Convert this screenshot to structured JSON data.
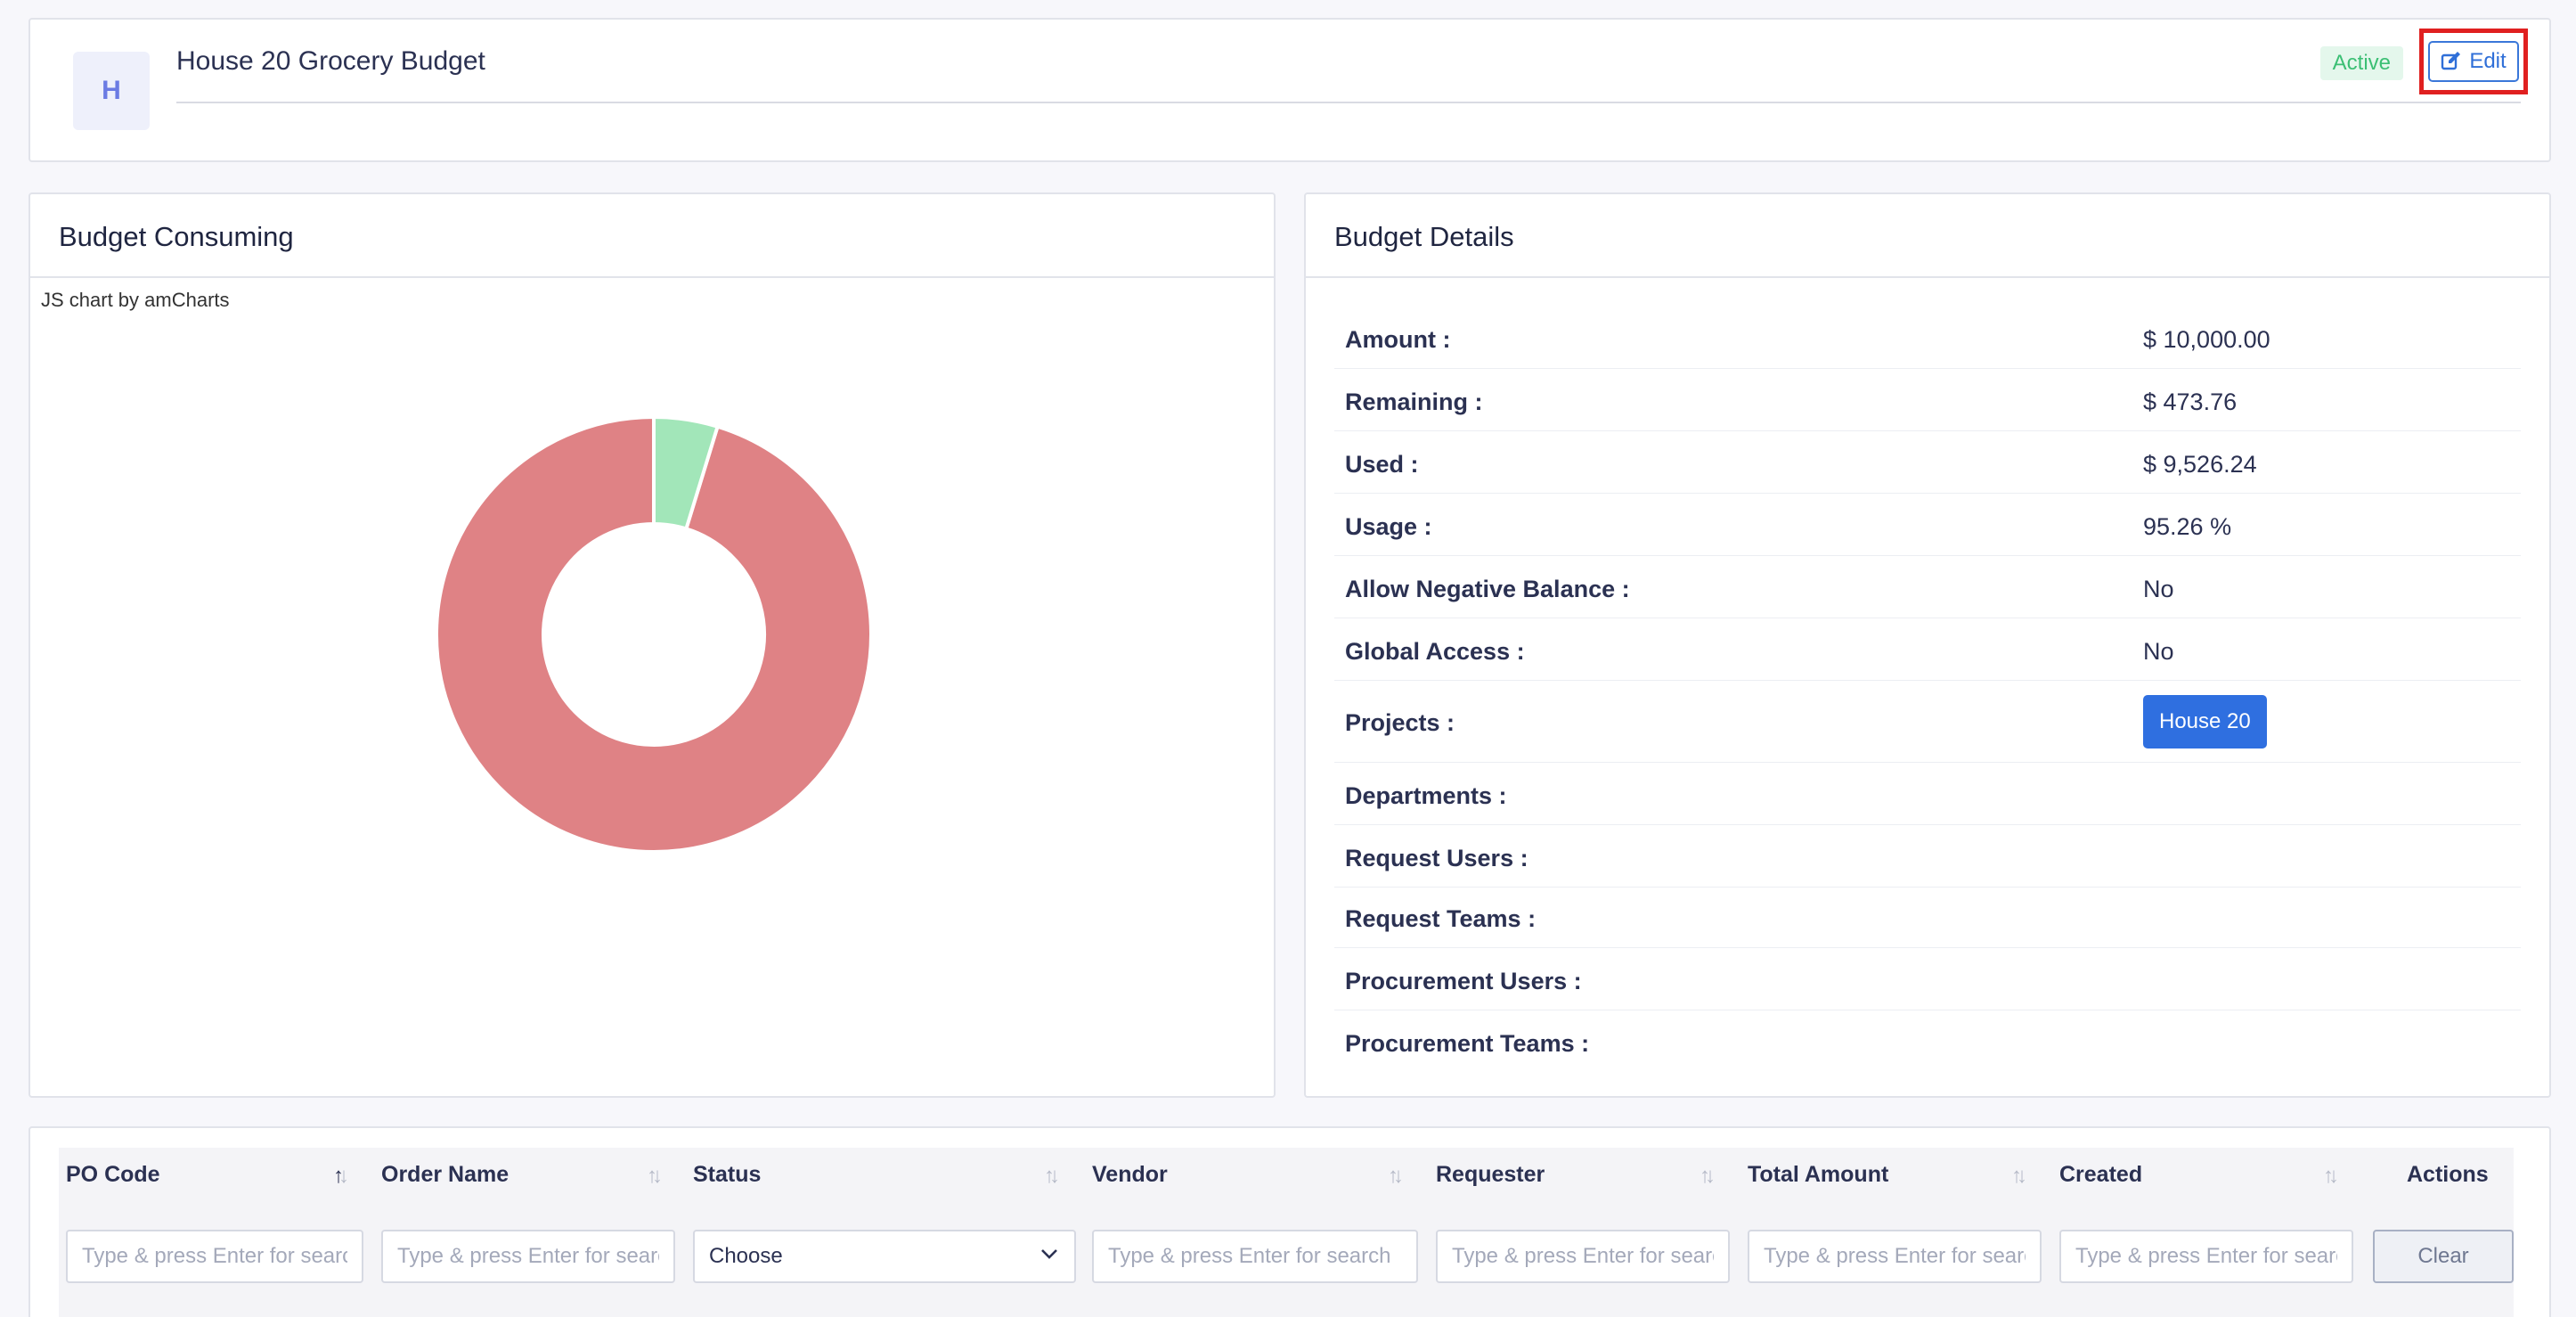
{
  "header": {
    "avatar_letter": "H",
    "title": "House 20 Grocery Budget",
    "status": "Active",
    "edit_label": "Edit"
  },
  "consuming": {
    "title": "Budget Consuming",
    "chart_credit": "JS chart by amCharts"
  },
  "chart_data": {
    "type": "pie",
    "donut": true,
    "slices": [
      {
        "label": "Used",
        "value": 9526.24,
        "color": "#df8285"
      },
      {
        "label": "Remaining",
        "value": 473.76,
        "color": "#a2e6b9"
      }
    ]
  },
  "details": {
    "title": "Budget Details",
    "rows": [
      {
        "label": "Amount :",
        "value": "$ 10,000.00"
      },
      {
        "label": "Remaining :",
        "value": "$ 473.76"
      },
      {
        "label": "Used :",
        "value": "$ 9,526.24"
      },
      {
        "label": "Usage :",
        "value": "95.26 %"
      },
      {
        "label": "Allow Negative Balance :",
        "value": "No"
      },
      {
        "label": "Global Access :",
        "value": "No"
      },
      {
        "label": "Projects :",
        "value": "House 20"
      },
      {
        "label": "Departments :",
        "value": ""
      },
      {
        "label": "Request Users :",
        "value": ""
      },
      {
        "label": "Request Teams :",
        "value": ""
      },
      {
        "label": "Procurement Users :",
        "value": ""
      },
      {
        "label": "Procurement Teams :",
        "value": ""
      }
    ]
  },
  "table": {
    "columns": [
      "PO Code",
      "Order Name",
      "Status",
      "Vendor",
      "Requester",
      "Total Amount",
      "Created"
    ],
    "actions_label": "Actions",
    "search_placeholder": "Type & press Enter for search",
    "status_select_value": "Choose",
    "clear_label": "Clear"
  },
  "colors": {
    "accent": "#2f6fe0",
    "active_badge_bg": "#e4f7ec",
    "active_badge_text": "#3bbf74",
    "highlight": "#e02020"
  }
}
